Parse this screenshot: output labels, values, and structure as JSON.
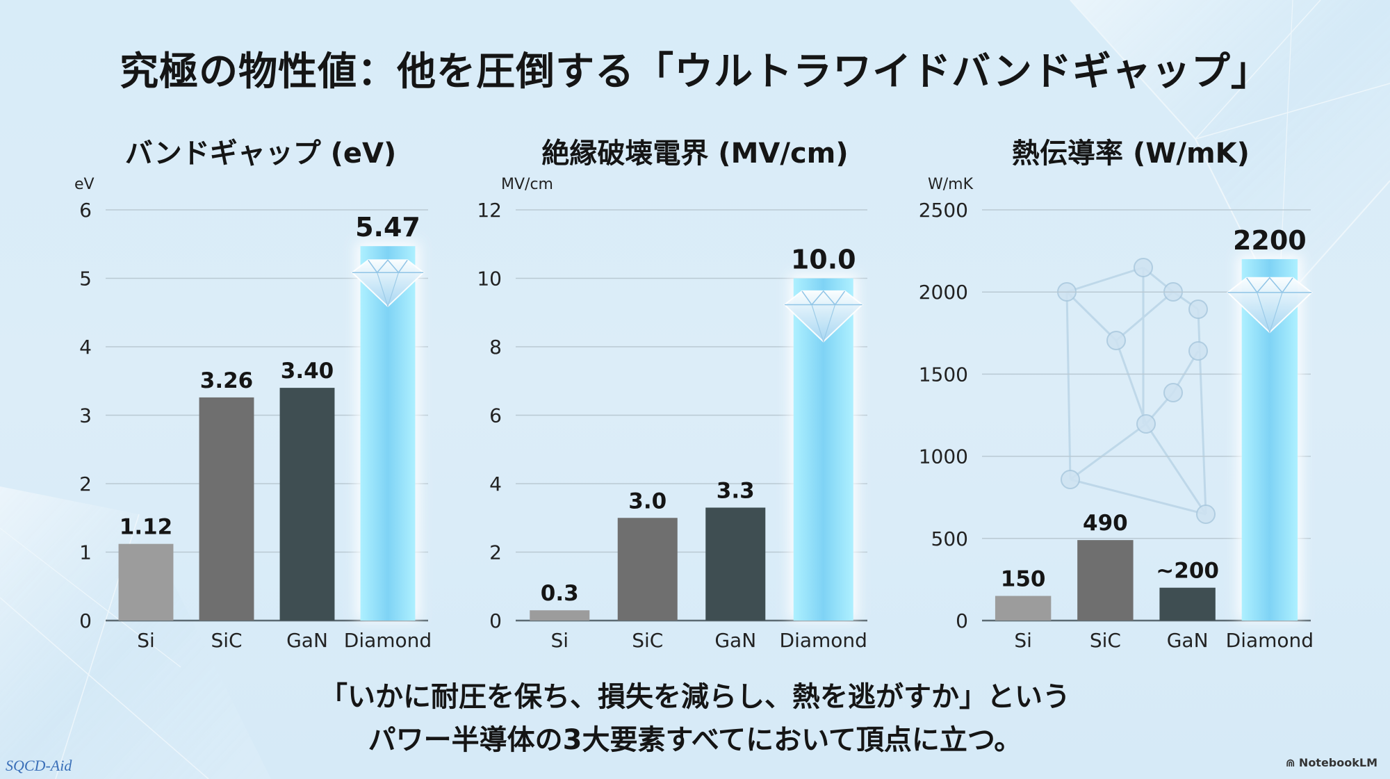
{
  "title": "究極の物性値：他を圧倒する「ウルトラワイドバンドギャップ」",
  "footer": {
    "line1": "「いかに耐圧を保ち、損失を減らし、熱を逃がすか」という",
    "line2": "パワー半導体の3大要素すべてにおいて頂点に立つ。"
  },
  "watermark": "SQCD-Aid",
  "source_badge": "NotebookLM",
  "colors": {
    "si": "#9c9c9c",
    "sic": "#6f6f6f",
    "gan": "#3f4e52",
    "diamond": "#7fd3f5",
    "grid": "#b9c9d3",
    "background": "#d8ecf8"
  },
  "chart_data": [
    {
      "type": "bar",
      "title": "バンドギャップ (eV)",
      "ylabel": "eV",
      "xlabel": "",
      "categories": [
        "Si",
        "SiC",
        "GaN",
        "Diamond"
      ],
      "values": [
        1.12,
        3.26,
        3.4,
        5.47
      ],
      "value_labels": [
        "1.12",
        "3.26",
        "3.40",
        "5.47"
      ],
      "ylim": [
        0,
        6
      ],
      "yticks": [
        0,
        1,
        2,
        3,
        4,
        5,
        6
      ],
      "ytick_labels": [
        "0",
        "1",
        "2",
        "3",
        "4",
        "5",
        "6"
      ],
      "grid": true,
      "highlight": "Diamond"
    },
    {
      "type": "bar",
      "title": "絶縁破壊電界 (MV/cm)",
      "ylabel": "MV/cm",
      "xlabel": "",
      "categories": [
        "Si",
        "SiC",
        "GaN",
        "Diamond"
      ],
      "values": [
        0.3,
        3.0,
        3.3,
        10.0
      ],
      "value_labels": [
        "0.3",
        "3.0",
        "3.3",
        "10.0"
      ],
      "ylim": [
        0,
        12
      ],
      "yticks": [
        0,
        2,
        4,
        6,
        8,
        10,
        12
      ],
      "ytick_labels": [
        "0",
        "2",
        "4",
        "6",
        "8",
        "10",
        "12"
      ],
      "grid": true,
      "highlight": "Diamond"
    },
    {
      "type": "bar",
      "title": "熱伝導率 (W/mK)",
      "ylabel": "W/mK",
      "xlabel": "",
      "categories": [
        "Si",
        "SiC",
        "GaN",
        "Diamond"
      ],
      "values": [
        150,
        490,
        200,
        2200
      ],
      "value_labels": [
        "150",
        "490",
        "~200",
        "2200"
      ],
      "ylim": [
        0,
        2500
      ],
      "yticks": [
        0,
        500,
        1000,
        1500,
        2000,
        2500
      ],
      "ytick_labels": [
        "0",
        "500",
        "1000",
        "1500",
        "2000",
        "2500"
      ],
      "grid": true,
      "highlight": "Diamond"
    }
  ]
}
